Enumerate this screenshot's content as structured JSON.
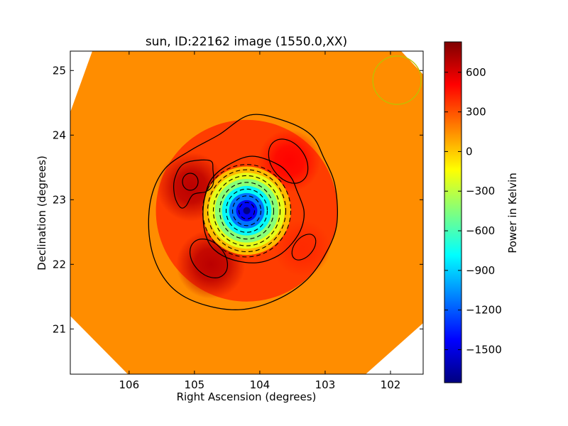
{
  "chart_data": {
    "type": "heatmap",
    "title": "sun, ID:22162 image (1550.0,XX)",
    "xlabel": "Right Ascension (degrees)",
    "ylabel": "Declination (degrees)",
    "xlim": [
      106.9,
      101.5
    ],
    "ylim": [
      20.3,
      25.3
    ],
    "x_inverted": true,
    "xticks": [
      106,
      105,
      104,
      103,
      102
    ],
    "yticks": [
      21,
      22,
      23,
      24,
      25
    ],
    "colorbar": {
      "label": "Power in Kelvin",
      "range": [
        -1750,
        830
      ],
      "ticks": [
        600,
        300,
        0,
        -300,
        -600,
        -900,
        -1200,
        -1500
      ],
      "colormap": "jet",
      "colors": [
        "#00007f",
        "#0000ff",
        "#007fff",
        "#00ffff",
        "#7fff7f",
        "#ffff00",
        "#ff7f00",
        "#ff0000",
        "#7f0000"
      ]
    },
    "background_level": 150,
    "features": [
      {
        "kind": "absorption",
        "ra": 104.2,
        "dec": 22.83,
        "peak": -1750,
        "sigma": 0.33
      },
      {
        "kind": "emission",
        "ra": 105.05,
        "dec": 23.2,
        "peak": 680,
        "sigma": 0.22
      },
      {
        "kind": "emission",
        "ra": 104.75,
        "dec": 22.0,
        "peak": 680,
        "sigma": 0.22
      },
      {
        "kind": "emission",
        "ra": 103.55,
        "dec": 23.6,
        "peak": 500,
        "sigma": 0.2
      },
      {
        "kind": "emission",
        "ra": 103.35,
        "dec": 22.25,
        "peak": 400,
        "sigma": 0.18
      },
      {
        "kind": "ring",
        "ra": 104.2,
        "dec": 22.83,
        "radius": 0.95,
        "peak": 420,
        "sigma": 0.4
      }
    ],
    "beam": {
      "ra": 101.9,
      "dec": 24.85,
      "radius_deg": 0.37,
      "color": "#bfbf00"
    },
    "contour_color": "#000000",
    "grid": false
  }
}
